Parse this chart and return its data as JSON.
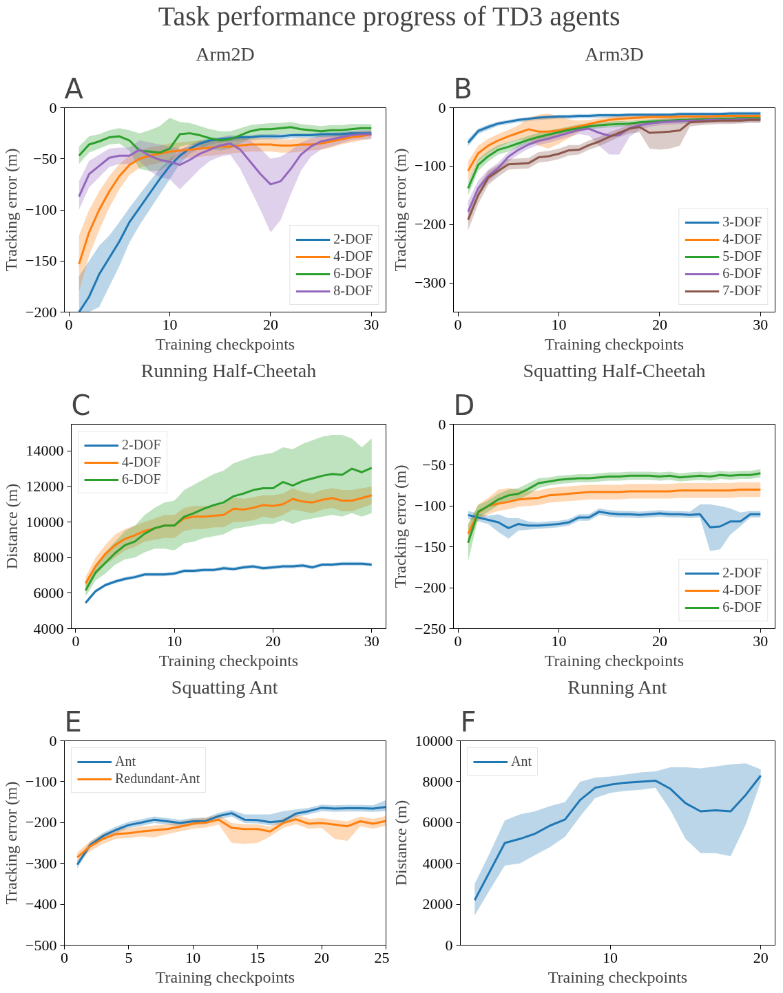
{
  "chart_data": [
    {
      "type": "other",
      "title": "Task performance progress of TD3 agents"
    },
    {
      "type": "line",
      "title": "Arm2D",
      "xlabel": "Training checkpoints",
      "ylabel": "Tracking error (m)",
      "annotations": [
        "A"
      ],
      "legend": "bottom right",
      "x": [
        1,
        2,
        3,
        4,
        5,
        6,
        7,
        8,
        9,
        10,
        11,
        12,
        13,
        14,
        15,
        16,
        17,
        18,
        19,
        20,
        21,
        22,
        23,
        24,
        25,
        26,
        27,
        28,
        29,
        30
      ],
      "xlim": [
        -0.45,
        31.45
      ],
      "xticks": [
        0,
        10,
        20,
        30
      ],
      "ylim": [
        -200,
        0
      ],
      "yticks": [
        0,
        {
          "value": -50,
          "label": "−50"
        },
        {
          "value": -100,
          "label": "−100"
        },
        {
          "value": -150,
          "label": "−150"
        },
        {
          "value": -200,
          "label": "−200"
        }
      ],
      "series": [
        {
          "name": "2-DOF",
          "color": "#1f77b4",
          "values": [
            -200,
            -185,
            -163,
            -147,
            -131,
            -112,
            -98,
            -84,
            -70,
            -57,
            -47,
            -40,
            -35,
            -32,
            -31,
            -30,
            -29,
            -29,
            -28,
            -28,
            -28,
            -27,
            -27,
            -27,
            -26,
            -26,
            -26,
            -25,
            -25,
            -25
          ],
          "lower": [
            -200,
            -200,
            -195,
            -175,
            -155,
            -132,
            -115,
            -100,
            -85,
            -70,
            -55,
            -45,
            -40,
            -36,
            -34,
            -33,
            -32,
            -32,
            -31,
            -31,
            -31,
            -30,
            -30,
            -30,
            -29,
            -29,
            -29,
            -28,
            -28,
            -28
          ],
          "upper": [
            -165,
            -150,
            -135,
            -125,
            -112,
            -98,
            -85,
            -72,
            -60,
            -50,
            -42,
            -36,
            -32,
            -30,
            -29,
            -28,
            -27,
            -27,
            -26,
            -26,
            -26,
            -25,
            -25,
            -25,
            -24,
            -24,
            -24,
            -23,
            -23,
            -23
          ]
        },
        {
          "name": "4-DOF",
          "color": "#ff7f0e",
          "values": [
            -153,
            -122,
            -100,
            -82,
            -67,
            -56,
            -50,
            -47,
            -45,
            -43,
            -42,
            -41,
            -40,
            -39,
            -38,
            -38,
            -37,
            -36,
            -36,
            -36,
            -37,
            -37,
            -36,
            -36,
            -35,
            -33,
            -31,
            -29,
            -28,
            -26
          ],
          "lower": [
            -180,
            -145,
            -120,
            -98,
            -80,
            -66,
            -59,
            -56,
            -54,
            -52,
            -50,
            -49,
            -48,
            -47,
            -46,
            -45,
            -44,
            -43,
            -43,
            -43,
            -44,
            -44,
            -43,
            -42,
            -41,
            -39,
            -36,
            -34,
            -32,
            -30
          ],
          "upper": [
            -125,
            -100,
            -82,
            -67,
            -55,
            -47,
            -42,
            -39,
            -37,
            -35,
            -34,
            -33,
            -32,
            -32,
            -31,
            -31,
            -30,
            -30,
            -30,
            -30,
            -31,
            -31,
            -30,
            -30,
            -29,
            -28,
            -26,
            -24,
            -24,
            -22
          ]
        },
        {
          "name": "6-DOF",
          "color": "#2ca02c",
          "values": [
            -47,
            -36,
            -33,
            -29,
            -28,
            -32,
            -42,
            -43,
            -44,
            -40,
            -26,
            -25,
            -27,
            -30,
            -32,
            -31,
            -27,
            -23,
            -21,
            -21,
            -20,
            -19,
            -21,
            -22,
            -23,
            -22,
            -22,
            -21,
            -20,
            -20
          ],
          "lower": [
            -55,
            -44,
            -40,
            -36,
            -35,
            -42,
            -60,
            -62,
            -62,
            -55,
            -38,
            -36,
            -38,
            -40,
            -42,
            -40,
            -35,
            -30,
            -27,
            -27,
            -26,
            -25,
            -27,
            -28,
            -29,
            -28,
            -28,
            -27,
            -25,
            -25
          ],
          "upper": [
            -38,
            -28,
            -26,
            -22,
            -20,
            -22,
            -25,
            -22,
            -18,
            -10,
            -14,
            -15,
            -18,
            -21,
            -23,
            -23,
            -20,
            -17,
            -16,
            -15,
            -15,
            -14,
            -16,
            -17,
            -18,
            -17,
            -17,
            -16,
            -16,
            -16
          ]
        },
        {
          "name": "8-DOF",
          "color": "#9467bd",
          "values": [
            -87,
            -65,
            -57,
            -49,
            -47,
            -47,
            -41,
            -47,
            -51,
            -53,
            -56,
            -51,
            -45,
            -41,
            -37,
            -35,
            -41,
            -53,
            -65,
            -75,
            -72,
            -60,
            -46,
            -38,
            -33,
            -31,
            -29,
            -27,
            -26,
            -26
          ],
          "lower": [
            -100,
            -78,
            -68,
            -58,
            -55,
            -55,
            -52,
            -62,
            -68,
            -70,
            -80,
            -70,
            -60,
            -52,
            -48,
            -46,
            -60,
            -80,
            -100,
            -122,
            -110,
            -85,
            -62,
            -48,
            -41,
            -38,
            -35,
            -32,
            -31,
            -31
          ],
          "upper": [
            -72,
            -52,
            -46,
            -40,
            -39,
            -39,
            -32,
            -34,
            -36,
            -38,
            -40,
            -38,
            -33,
            -32,
            -29,
            -27,
            -28,
            -32,
            -40,
            -50,
            -48,
            -42,
            -34,
            -30,
            -27,
            -25,
            -24,
            -23,
            -22,
            -22
          ]
        }
      ]
    },
    {
      "type": "line",
      "title": "Arm3D",
      "xlabel": "Training checkpoints",
      "ylabel": "Tracking error (m)",
      "annotations": [
        "B"
      ],
      "legend": "bottom right",
      "x": [
        1,
        2,
        3,
        4,
        5,
        6,
        7,
        8,
        9,
        10,
        11,
        12,
        13,
        14,
        15,
        16,
        17,
        18,
        19,
        20,
        21,
        22,
        23,
        24,
        25,
        26,
        27,
        28,
        29,
        30
      ],
      "xlim": [
        -0.45,
        31.45
      ],
      "xticks": [
        0,
        10,
        20,
        30
      ],
      "ylim": [
        -350,
        0
      ],
      "yticks": [
        0,
        {
          "value": -100,
          "label": "−100"
        },
        {
          "value": -200,
          "label": "−200"
        },
        {
          "value": -300,
          "label": "−300"
        }
      ],
      "series": [
        {
          "name": "3-DOF",
          "color": "#1f77b4",
          "values": [
            -60,
            -40,
            -33,
            -27,
            -24,
            -21,
            -19,
            -17,
            -16,
            -15,
            -15,
            -14,
            -14,
            -13,
            -13,
            -13,
            -12,
            -12,
            -12,
            -12,
            -12,
            -11,
            -11,
            -11,
            -11,
            -11,
            -10,
            -10,
            -10,
            -10
          ],
          "lower": [
            -66,
            -45,
            -38,
            -31,
            -28,
            -25,
            -23,
            -21,
            -20,
            -19,
            -19,
            -18,
            -18,
            -17,
            -17,
            -17,
            -16,
            -16,
            -16,
            -16,
            -16,
            -15,
            -15,
            -15,
            -15,
            -15,
            -14,
            -14,
            -14,
            -14
          ],
          "upper": [
            -54,
            -36,
            -29,
            -24,
            -21,
            -18,
            -16,
            -14,
            -13,
            -12,
            -12,
            -11,
            -11,
            -10,
            -10,
            -10,
            -9,
            -9,
            -9,
            -9,
            -9,
            -8,
            -8,
            -8,
            -8,
            -8,
            -7,
            -7,
            -7,
            -7
          ]
        },
        {
          "name": "4-DOF",
          "color": "#ff7f0e",
          "values": [
            -108,
            -78,
            -65,
            -56,
            -49,
            -43,
            -37,
            -41,
            -41,
            -39,
            -36,
            -32,
            -28,
            -24,
            -21,
            -19,
            -18,
            -17,
            -16,
            -16,
            -16,
            -15,
            -15,
            -15,
            -15,
            -14,
            -14,
            -14,
            -14,
            -14
          ],
          "lower": [
            -125,
            -92,
            -78,
            -68,
            -60,
            -55,
            -55,
            -65,
            -70,
            -62,
            -52,
            -42,
            -35,
            -30,
            -27,
            -25,
            -23,
            -22,
            -21,
            -21,
            -20,
            -19,
            -19,
            -19,
            -19,
            -18,
            -18,
            -18,
            -18,
            -18
          ],
          "upper": [
            -92,
            -65,
            -53,
            -45,
            -38,
            -30,
            -18,
            -12,
            -10,
            -15,
            -20,
            -22,
            -21,
            -18,
            -16,
            -14,
            -13,
            -12,
            -12,
            -11,
            -11,
            -11,
            -11,
            -11,
            -11,
            -10,
            -10,
            -10,
            -10,
            -10
          ]
        },
        {
          "name": "5-DOF",
          "color": "#2ca02c",
          "values": [
            -138,
            -98,
            -83,
            -72,
            -67,
            -61,
            -55,
            -50,
            -46,
            -42,
            -38,
            -35,
            -32,
            -30,
            -29,
            -28,
            -27,
            -25,
            -24,
            -23,
            -22,
            -21,
            -21,
            -20,
            -20,
            -19,
            -19,
            -18,
            -18,
            -18
          ],
          "lower": [
            -150,
            -108,
            -92,
            -80,
            -75,
            -68,
            -62,
            -57,
            -53,
            -48,
            -44,
            -41,
            -37,
            -35,
            -34,
            -33,
            -31,
            -29,
            -28,
            -27,
            -26,
            -25,
            -25,
            -24,
            -24,
            -23,
            -23,
            -22,
            -22,
            -22
          ],
          "upper": [
            -126,
            -88,
            -74,
            -64,
            -59,
            -54,
            -48,
            -43,
            -39,
            -36,
            -32,
            -29,
            -27,
            -25,
            -24,
            -23,
            -23,
            -21,
            -20,
            -19,
            -18,
            -17,
            -17,
            -16,
            -16,
            -15,
            -15,
            -14,
            -14,
            -14
          ]
        },
        {
          "name": "6-DOF",
          "color": "#9467bd",
          "values": [
            -178,
            -138,
            -117,
            -103,
            -84,
            -72,
            -63,
            -57,
            -53,
            -48,
            -43,
            -38,
            -36,
            -43,
            -48,
            -47,
            -35,
            -30,
            -27,
            -25,
            -24,
            -23,
            -22,
            -22,
            -21,
            -21,
            -21,
            -20,
            -20,
            -20
          ],
          "lower": [
            -195,
            -152,
            -128,
            -112,
            -92,
            -80,
            -70,
            -64,
            -60,
            -55,
            -50,
            -45,
            -48,
            -65,
            -80,
            -80,
            -50,
            -38,
            -33,
            -30,
            -29,
            -28,
            -27,
            -27,
            -26,
            -26,
            -26,
            -25,
            -25,
            -25
          ],
          "upper": [
            -160,
            -125,
            -106,
            -94,
            -76,
            -64,
            -56,
            -50,
            -46,
            -41,
            -36,
            -32,
            -28,
            -30,
            -32,
            -30,
            -25,
            -24,
            -22,
            -20,
            -19,
            -18,
            -17,
            -17,
            -16,
            -16,
            -16,
            -15,
            -15,
            -15
          ]
        },
        {
          "name": "7-DOF",
          "color": "#8c564b",
          "values": [
            -192,
            -150,
            -120,
            -108,
            -97,
            -96,
            -95,
            -85,
            -83,
            -79,
            -73,
            -72,
            -64,
            -58,
            -50,
            -43,
            -36,
            -33,
            -43,
            -42,
            -41,
            -39,
            -25,
            -24,
            -23,
            -22,
            -22,
            -22,
            -21,
            -21
          ],
          "lower": [
            -210,
            -165,
            -132,
            -118,
            -106,
            -105,
            -104,
            -94,
            -92,
            -88,
            -82,
            -80,
            -72,
            -66,
            -58,
            -50,
            -44,
            -42,
            -70,
            -72,
            -70,
            -65,
            -32,
            -30,
            -29,
            -28,
            -28,
            -27,
            -26,
            -26
          ],
          "upper": [
            -175,
            -135,
            -108,
            -98,
            -88,
            -87,
            -86,
            -76,
            -74,
            -70,
            -64,
            -64,
            -56,
            -50,
            -42,
            -36,
            -28,
            -25,
            -22,
            -22,
            -22,
            -22,
            -18,
            -18,
            -17,
            -17,
            -17,
            -16,
            -16,
            -16
          ]
        }
      ]
    },
    {
      "type": "line",
      "title": "Running Half-Cheetah",
      "xlabel": "Training checkpoints",
      "ylabel": "Distance (m)",
      "annotations": [
        "C"
      ],
      "legend": "top left",
      "x": [
        1,
        2,
        3,
        4,
        5,
        6,
        7,
        8,
        9,
        10,
        11,
        12,
        13,
        14,
        15,
        16,
        17,
        18,
        19,
        20,
        21,
        22,
        23,
        24,
        25,
        26,
        27,
        28,
        29,
        30
      ],
      "xlim": [
        -0.45,
        31.45
      ],
      "xticks": [
        0,
        10,
        20,
        30
      ],
      "ylim": [
        4000,
        15500
      ],
      "yticks": [
        4000,
        6000,
        8000,
        10000,
        12000,
        14000
      ],
      "series": [
        {
          "name": "2-DOF",
          "color": "#1f77b4",
          "values": [
            5450,
            6100,
            6450,
            6650,
            6800,
            6900,
            7050,
            7050,
            7050,
            7100,
            7250,
            7250,
            7300,
            7300,
            7400,
            7350,
            7450,
            7500,
            7400,
            7450,
            7500,
            7500,
            7550,
            7450,
            7600,
            7600,
            7650,
            7650,
            7650,
            7600
          ],
          "lower": [
            5350,
            6000,
            6350,
            6550,
            6700,
            6800,
            6950,
            6950,
            6950,
            7000,
            7150,
            7150,
            7200,
            7200,
            7300,
            7250,
            7350,
            7400,
            7300,
            7350,
            7400,
            7400,
            7450,
            7350,
            7500,
            7500,
            7550,
            7550,
            7550,
            7500
          ],
          "upper": [
            5550,
            6200,
            6550,
            6750,
            6900,
            7000,
            7150,
            7150,
            7150,
            7200,
            7350,
            7350,
            7400,
            7400,
            7500,
            7450,
            7550,
            7600,
            7500,
            7550,
            7600,
            7600,
            7650,
            7550,
            7700,
            7700,
            7750,
            7750,
            7750,
            7700
          ]
        },
        {
          "name": "4-DOF",
          "color": "#ff7f0e",
          "values": [
            6550,
            7500,
            8200,
            8700,
            9050,
            9250,
            9500,
            9650,
            9800,
            9800,
            10200,
            10300,
            10300,
            10350,
            10400,
            10750,
            10700,
            10800,
            10950,
            10900,
            11000,
            11300,
            11150,
            11100,
            11250,
            11350,
            11200,
            11200,
            11350,
            11500
          ],
          "lower": [
            6200,
            7000,
            7600,
            8000,
            8400,
            8600,
            8900,
            9000,
            9100,
            9100,
            9500,
            9600,
            9600,
            9700,
            9700,
            10000,
            10000,
            10100,
            10300,
            10200,
            10400,
            10700,
            10600,
            10500,
            10700,
            10800,
            10600,
            10600,
            10800,
            11000
          ],
          "upper": [
            6900,
            8000,
            8700,
            9300,
            9600,
            9800,
            10000,
            10200,
            10400,
            10400,
            10800,
            10900,
            10900,
            10900,
            11000,
            11400,
            11300,
            11400,
            11500,
            11500,
            11600,
            11900,
            11700,
            11600,
            11800,
            11900,
            11800,
            11800,
            11900,
            12000
          ]
        },
        {
          "name": "6-DOF",
          "color": "#2ca02c",
          "values": [
            6150,
            7150,
            7700,
            8250,
            8700,
            8900,
            9350,
            9650,
            9800,
            9800,
            10300,
            10500,
            10750,
            10950,
            11100,
            11450,
            11600,
            11800,
            11900,
            11900,
            12250,
            12050,
            12300,
            12450,
            12600,
            12700,
            12650,
            13000,
            12800,
            13050
          ],
          "lower": [
            5800,
            6700,
            7100,
            7600,
            7900,
            8000,
            8300,
            8500,
            8500,
            8400,
            8800,
            8900,
            9100,
            9200,
            9300,
            9600,
            9700,
            9800,
            9900,
            9900,
            10100,
            9900,
            10100,
            10200,
            10300,
            10400,
            10300,
            10500,
            10300,
            10500
          ],
          "upper": [
            6500,
            7600,
            8300,
            8900,
            9500,
            9800,
            10400,
            10800,
            11100,
            11200,
            11800,
            12100,
            12400,
            12700,
            12900,
            13300,
            13500,
            13700,
            13800,
            13900,
            14200,
            14100,
            14400,
            14600,
            14800,
            14900,
            14900,
            14700,
            14200,
            14700
          ]
        }
      ]
    },
    {
      "type": "line",
      "title": "Squatting Half-Cheetah",
      "xlabel": "Training checkpoints",
      "ylabel": "Tracking error (m)",
      "annotations": [
        "D"
      ],
      "legend": "bottom right",
      "x": [
        1,
        2,
        3,
        4,
        5,
        6,
        7,
        8,
        9,
        10,
        11,
        12,
        13,
        14,
        15,
        16,
        17,
        18,
        19,
        20,
        21,
        22,
        23,
        24,
        25,
        26,
        27,
        28,
        29,
        30
      ],
      "xlim": [
        -0.45,
        31.45
      ],
      "xticks": [
        0,
        10,
        20,
        30
      ],
      "ylim": [
        -250,
        0
      ],
      "yticks": [
        0,
        {
          "value": -50,
          "label": "−50"
        },
        {
          "value": -100,
          "label": "−100"
        },
        {
          "value": -150,
          "label": "−150"
        },
        {
          "value": -200,
          "label": "−200"
        },
        {
          "value": -250,
          "label": "−250"
        }
      ],
      "series": [
        {
          "name": "2-DOF",
          "color": "#1f77b4",
          "values": [
            -111,
            -114,
            -117,
            -120,
            -127,
            -122,
            -124,
            -124,
            -123,
            -122,
            -120,
            -114,
            -114,
            -107,
            -109,
            -110,
            -110,
            -111,
            -110,
            -109,
            -110,
            -110,
            -111,
            -110,
            -126,
            -125,
            -119,
            -119,
            -110,
            -110
          ],
          "lower": [
            -116,
            -119,
            -122,
            -132,
            -140,
            -130,
            -129,
            -128,
            -127,
            -126,
            -124,
            -118,
            -118,
            -111,
            -113,
            -114,
            -114,
            -115,
            -114,
            -113,
            -114,
            -114,
            -115,
            -114,
            -155,
            -153,
            -135,
            -125,
            -114,
            -114
          ],
          "upper": [
            -106,
            -109,
            -112,
            -110,
            -115,
            -115,
            -119,
            -120,
            -119,
            -118,
            -116,
            -110,
            -110,
            -103,
            -105,
            -106,
            -106,
            -107,
            -106,
            -105,
            -106,
            -106,
            -107,
            -98,
            -98,
            -100,
            -103,
            -108,
            -106,
            -106
          ]
        },
        {
          "name": "4-DOF",
          "color": "#ff7f0e",
          "values": [
            -134,
            -108,
            -100,
            -97,
            -95,
            -92,
            -91,
            -90,
            -87,
            -86,
            -85,
            -84,
            -83,
            -83,
            -83,
            -83,
            -82,
            -82,
            -82,
            -82,
            -82,
            -81,
            -81,
            -81,
            -81,
            -81,
            -81,
            -80,
            -80,
            -80
          ],
          "lower": [
            -145,
            -118,
            -110,
            -106,
            -104,
            -101,
            -100,
            -99,
            -96,
            -95,
            -94,
            -93,
            -92,
            -92,
            -92,
            -92,
            -91,
            -91,
            -91,
            -91,
            -91,
            -90,
            -90,
            -90,
            -90,
            -90,
            -90,
            -89,
            -89,
            -89
          ],
          "upper": [
            -123,
            -98,
            -90,
            -80,
            -78,
            -80,
            -82,
            -81,
            -78,
            -77,
            -76,
            -75,
            -74,
            -74,
            -74,
            -74,
            -73,
            -73,
            -73,
            -73,
            -73,
            -72,
            -72,
            -72,
            -72,
            -72,
            -72,
            -71,
            -71,
            -71
          ]
        },
        {
          "name": "6-DOF",
          "color": "#2ca02c",
          "values": [
            -145,
            -107,
            -100,
            -92,
            -87,
            -85,
            -79,
            -72,
            -70,
            -68,
            -67,
            -66,
            -66,
            -65,
            -64,
            -64,
            -63,
            -63,
            -63,
            -64,
            -63,
            -65,
            -64,
            -63,
            -64,
            -62,
            -63,
            -62,
            -62,
            -60
          ],
          "lower": [
            -168,
            -115,
            -107,
            -99,
            -94,
            -92,
            -86,
            -78,
            -75,
            -73,
            -72,
            -71,
            -71,
            -70,
            -69,
            -69,
            -68,
            -68,
            -68,
            -69,
            -68,
            -70,
            -69,
            -68,
            -69,
            -67,
            -68,
            -67,
            -67,
            -65
          ],
          "upper": [
            -122,
            -99,
            -93,
            -85,
            -80,
            -78,
            -72,
            -66,
            -65,
            -63,
            -62,
            -61,
            -61,
            -60,
            -59,
            -59,
            -58,
            -58,
            -58,
            -59,
            -58,
            -60,
            -59,
            -58,
            -59,
            -57,
            -58,
            -57,
            -57,
            -55
          ]
        }
      ]
    },
    {
      "type": "line",
      "title": "Squatting Ant",
      "xlabel": "Training checkpoints",
      "ylabel": "Tracking error (m)",
      "annotations": [
        "E"
      ],
      "legend": "top left",
      "x": [
        1,
        2,
        3,
        4,
        5,
        6,
        7,
        8,
        9,
        10,
        11,
        12,
        13,
        14,
        15,
        16,
        17,
        18,
        19,
        20,
        21,
        22,
        23,
        24,
        25
      ],
      "xlim": [
        0,
        25
      ],
      "xticks": [
        0,
        5,
        10,
        15,
        20,
        25
      ],
      "ylim": [
        -500,
        0
      ],
      "yticks": [
        0,
        {
          "value": -100,
          "label": "−100"
        },
        {
          "value": -200,
          "label": "−200"
        },
        {
          "value": -300,
          "label": "−300"
        },
        {
          "value": -400,
          "label": "−400"
        },
        {
          "value": -500,
          "label": "−500"
        }
      ],
      "series": [
        {
          "name": "Ant",
          "color": "#1f77b4",
          "values": [
            -303,
            -255,
            -233,
            -218,
            -206,
            -200,
            -193,
            -197,
            -201,
            -197,
            -196,
            -184,
            -177,
            -193,
            -194,
            -199,
            -196,
            -178,
            -172,
            -164,
            -166,
            -165,
            -165,
            -166,
            -162
          ],
          "lower": [
            -312,
            -263,
            -241,
            -226,
            -214,
            -208,
            -201,
            -205,
            -209,
            -205,
            -204,
            -192,
            -185,
            -201,
            -202,
            -207,
            -204,
            -186,
            -180,
            -172,
            -174,
            -173,
            -173,
            -174,
            -172
          ],
          "upper": [
            -294,
            -247,
            -225,
            -210,
            -198,
            -192,
            -185,
            -189,
            -193,
            -189,
            -188,
            -176,
            -169,
            -180,
            -180,
            -180,
            -172,
            -168,
            -164,
            -156,
            -158,
            -157,
            -157,
            -158,
            -145
          ]
        },
        {
          "name": "Redundant-Ant",
          "color": "#ff7f0e",
          "values": [
            -285,
            -258,
            -240,
            -228,
            -226,
            -222,
            -219,
            -216,
            -210,
            -203,
            -200,
            -193,
            -213,
            -216,
            -216,
            -222,
            -201,
            -192,
            -203,
            -201,
            -205,
            -209,
            -197,
            -203,
            -196
          ],
          "lower": [
            -297,
            -270,
            -252,
            -240,
            -238,
            -234,
            -236,
            -228,
            -222,
            -215,
            -212,
            -205,
            -250,
            -252,
            -250,
            -234,
            -213,
            -204,
            -215,
            -213,
            -240,
            -245,
            -209,
            -215,
            -208
          ],
          "upper": [
            -273,
            -246,
            -228,
            -216,
            -214,
            -210,
            -207,
            -204,
            -198,
            -191,
            -188,
            -181,
            -201,
            -204,
            -204,
            -210,
            -189,
            -180,
            -191,
            -189,
            -193,
            -197,
            -185,
            -191,
            -184
          ]
        }
      ]
    },
    {
      "type": "line",
      "title": "Running Ant",
      "xlabel": "Training checkpoints",
      "ylabel": "Distance (m)",
      "annotations": [
        "F"
      ],
      "legend": "top left",
      "x": [
        1,
        2,
        3,
        4,
        5,
        6,
        7,
        8,
        9,
        10,
        11,
        12,
        13,
        14,
        15,
        16,
        17,
        18,
        19,
        20
      ],
      "xlim": [
        0.05,
        20.95
      ],
      "xticks": [
        10,
        20
      ],
      "ylim": [
        0,
        10000
      ],
      "yticks": [
        0,
        2000,
        4000,
        6000,
        8000,
        10000
      ],
      "series": [
        {
          "name": "Ant",
          "color": "#1f77b4",
          "values": [
            2200,
            3600,
            5000,
            5200,
            5450,
            5850,
            6150,
            7100,
            7700,
            7850,
            7950,
            8000,
            8050,
            7650,
            6950,
            6550,
            6600,
            6550,
            7350,
            8300
          ],
          "lower": [
            1450,
            2700,
            3900,
            4000,
            4400,
            4800,
            5300,
            6300,
            7200,
            7450,
            7550,
            7600,
            7700,
            6600,
            5200,
            4500,
            4500,
            4350,
            5900,
            8000
          ],
          "upper": [
            3000,
            4500,
            6100,
            6400,
            6550,
            6800,
            7000,
            8000,
            8200,
            8250,
            8350,
            8450,
            8500,
            8700,
            8700,
            8650,
            8750,
            8850,
            8900,
            8600
          ]
        }
      ]
    }
  ]
}
